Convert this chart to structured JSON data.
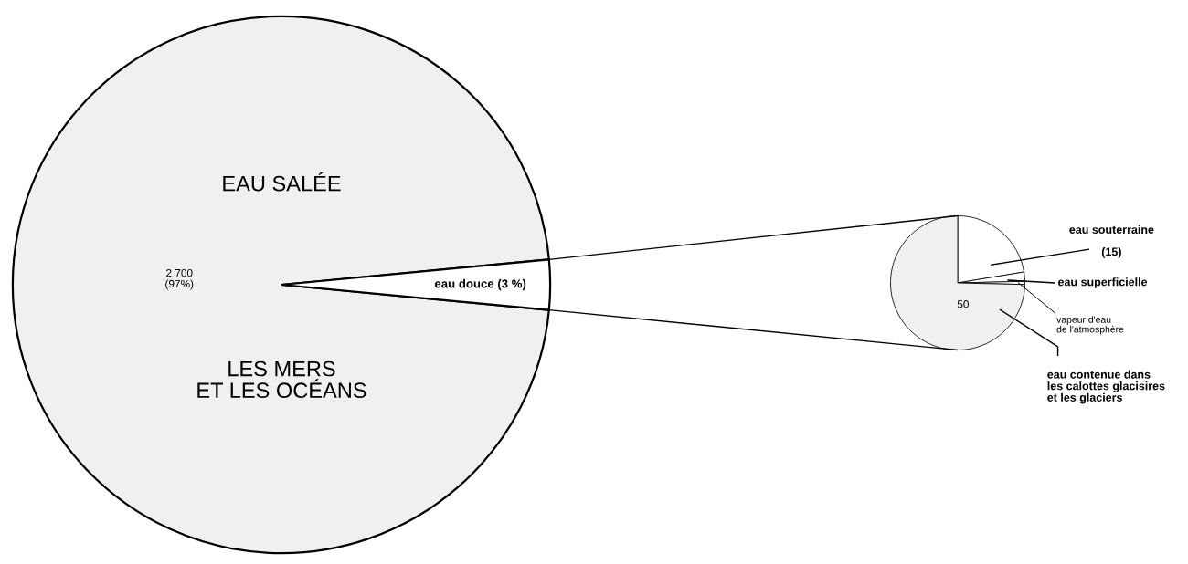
{
  "chart_data": [
    {
      "type": "pie",
      "categories": [
        "EAU SALÉE",
        null
      ],
      "values": [
        97,
        3
      ],
      "colors": [
        "#f0f0f0",
        "#ffffff"
      ],
      "value_labels": [
        "2 700\n(97%)",
        "eau douce (3 %)"
      ],
      "annotations": [
        "LES MERS\nET LES OCÉANS"
      ]
    },
    {
      "type": "pie",
      "categories": [
        "eau souterraine",
        "eau superficielle",
        "vapeur d'eau\nde l'atmosphère",
        "eau contenue dans\nles calottes glacisires\net les glaciers"
      ],
      "values": [
        15,
        1.5,
        0.5,
        50
      ],
      "colors": [
        "#ffffff",
        "#ffffff",
        "#ffffff",
        "#f0f0f0"
      ],
      "value_labels": [
        "(15)",
        null,
        null,
        "50"
      ]
    }
  ]
}
